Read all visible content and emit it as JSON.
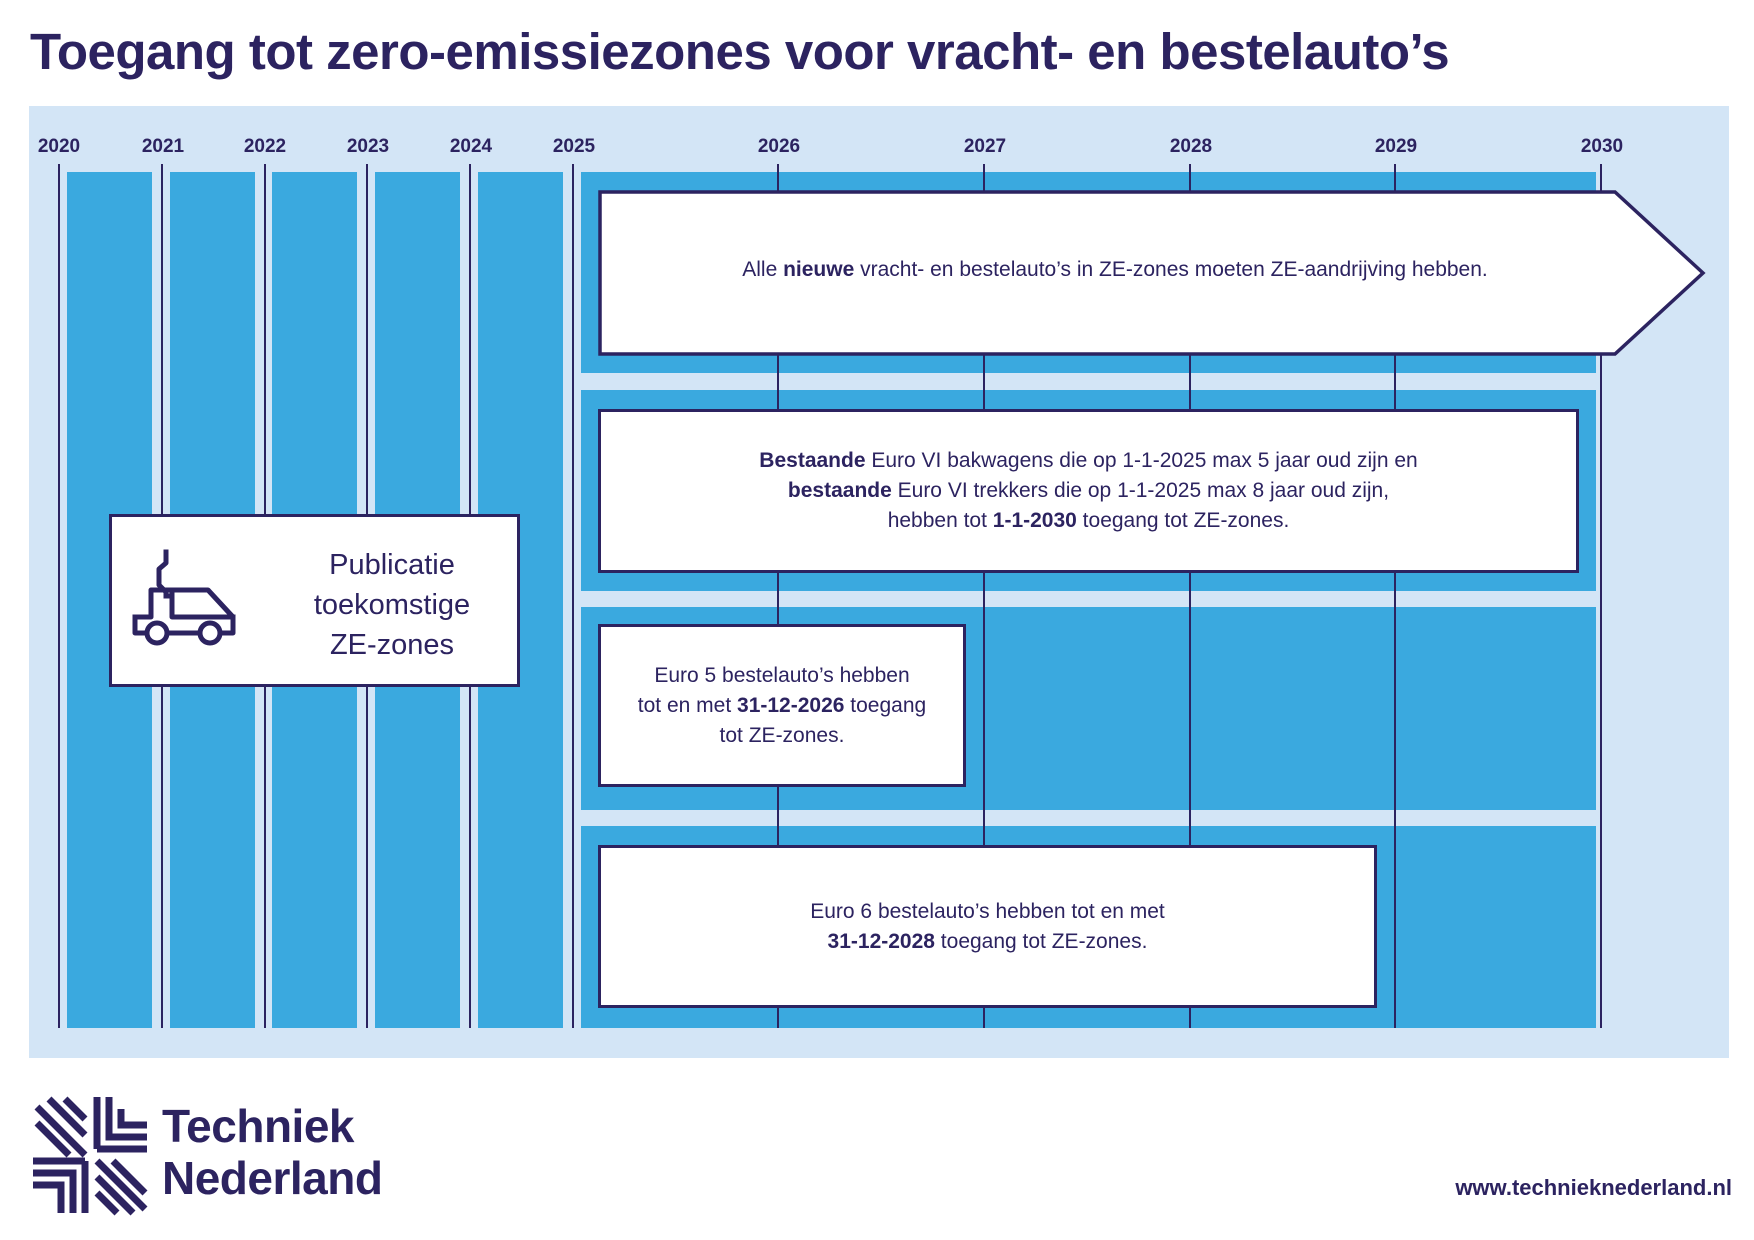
{
  "title": "Toegang tot zero-emissiezones voor vracht- en bestelauto’s",
  "timeline": {
    "years": [
      "2020",
      "2021",
      "2022",
      "2023",
      "2024",
      "2025",
      "2026",
      "2027",
      "2028",
      "2029",
      "2030"
    ]
  },
  "publication": {
    "icon": "electric-van-icon",
    "lines": [
      "Publicatie",
      "toekomstige",
      "ZE-zones"
    ]
  },
  "rules": [
    {
      "id": "new-vehicles",
      "from": "2025",
      "text": [
        {
          "t": "Alle ",
          "b": false
        },
        {
          "t": "nieuwe",
          "b": true
        },
        {
          "t": " vracht- en bestelauto’s in ZE-zones moeten ZE-aandrijving hebben.",
          "b": false
        }
      ]
    },
    {
      "id": "euro-vi",
      "from": "2025",
      "until": "1-1-2030",
      "lines": [
        [
          {
            "t": "Bestaande",
            "b": true
          },
          {
            "t": " Euro VI bakwagens die op 1-1-2025 max 5 jaar oud zijn en",
            "b": false
          }
        ],
        [
          {
            "t": "bestaande",
            "b": true
          },
          {
            "t": " Euro VI trekkers die op 1-1-2025 max 8 jaar oud zijn,",
            "b": false
          }
        ],
        [
          {
            "t": "hebben tot ",
            "b": false
          },
          {
            "t": "1-1-2030",
            "b": true
          },
          {
            "t": " toegang tot ZE-zones.",
            "b": false
          }
        ]
      ]
    },
    {
      "id": "euro-5",
      "from": "2025",
      "until": "31-12-2026",
      "lines": [
        [
          {
            "t": "Euro 5 bestelauto’s hebben",
            "b": false
          }
        ],
        [
          {
            "t": "tot en met ",
            "b": false
          },
          {
            "t": "31-12-2026",
            "b": true
          },
          {
            "t": " toegang",
            "b": false
          }
        ],
        [
          {
            "t": "tot ZE-zones.",
            "b": false
          }
        ]
      ]
    },
    {
      "id": "euro-6",
      "from": "2025",
      "until": "31-12-2028",
      "lines": [
        [
          {
            "t": "Euro 6 bestelauto’s hebben tot en met",
            "b": false
          }
        ],
        [
          {
            "t": "31-12-2028",
            "b": true
          },
          {
            "t": " toegang tot ZE-zones.",
            "b": false
          }
        ]
      ]
    }
  ],
  "brand": {
    "logo": "techniek-nederland-logo",
    "name_line1": "Techniek",
    "name_line2": "Nederland"
  },
  "footer": {
    "url": "www.technieknederland.nl"
  },
  "colors": {
    "navy": "#2c2360",
    "blue": "#3aa9df",
    "light_blue": "#d3e5f6",
    "white": "#ffffff"
  }
}
